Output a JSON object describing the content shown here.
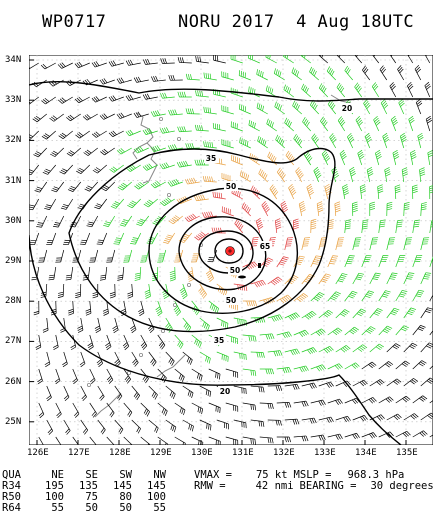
{
  "header": {
    "storm_id": "WP0717",
    "title": "NORU 2017  4 Aug 18UTC"
  },
  "axes": {
    "lat_labels": [
      "34N",
      "33N",
      "32N",
      "31N",
      "30N",
      "29N",
      "28N",
      "27N",
      "26N",
      "25N"
    ],
    "lon_labels": [
      "126E",
      "127E",
      "128E",
      "129E",
      "130E",
      "131E",
      "132E",
      "133E",
      "134E",
      "135E"
    ]
  },
  "isotach_labels": [
    "20",
    "35",
    "50",
    "65",
    "50",
    "50",
    "35",
    "20"
  ],
  "wind_radii": {
    "header": [
      "QUA",
      "NE",
      "SE",
      "SW",
      "NW"
    ],
    "rows": [
      [
        "R34",
        "195",
        "135",
        "145",
        "145"
      ],
      [
        "R50",
        "100",
        "75",
        "80",
        "100"
      ],
      [
        "R64",
        "55",
        "50",
        "50",
        "55"
      ]
    ]
  },
  "stats": {
    "vmax_label": "VMAX =",
    "vmax_value": "75 kt",
    "mslp_label": "MSLP =",
    "mslp_value": "968.3 hPa",
    "rmw_label": "RMW =",
    "rmw_value": "42 nmi",
    "bearing_label": "BEARING =",
    "bearing_value": "30 degrees"
  },
  "colors": {
    "barb_34": "#22cc22",
    "barb_50": "#e8a040",
    "barb_64": "#e04040",
    "barb_low": "#000000",
    "center": "#ff2a2a",
    "coast": "#888888"
  }
}
